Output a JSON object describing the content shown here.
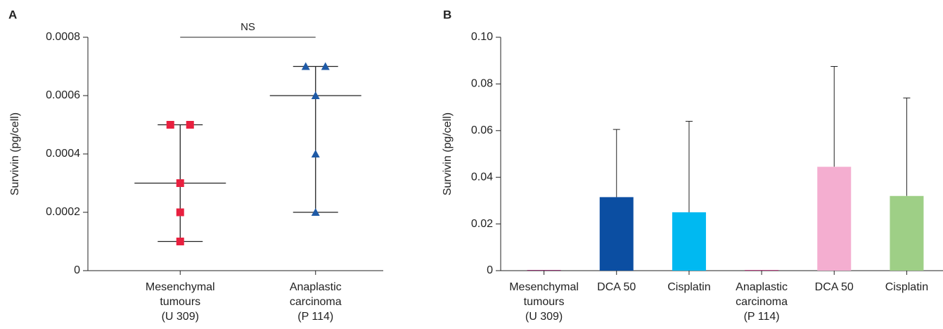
{
  "chart_data": [
    {
      "type": "scatter",
      "panel": "A",
      "ylabel": "Survivin (pg/cell)",
      "categories": [
        [
          "Mesenchymal",
          "tumours",
          "(U 309)"
        ],
        [
          "Anaplastic",
          "carcinoma",
          "(P 114)"
        ]
      ],
      "groups": [
        {
          "color": "#e8203f",
          "marker": "square",
          "values": [
            0.0005,
            0.0005,
            0.0003,
            0.0002,
            0.0001
          ],
          "median": 0.0003,
          "range": [
            0.0001,
            0.0005
          ]
        },
        {
          "color": "#1f5aa6",
          "marker": "triangle",
          "values": [
            0.0007,
            0.0007,
            0.0006,
            0.0004,
            0.0002
          ],
          "median": 0.0006,
          "range": [
            0.0002,
            0.0007
          ]
        }
      ],
      "annotation": "NS",
      "ylim": [
        0,
        0.0008
      ],
      "yticks": [
        0,
        0.0002,
        0.0004,
        0.0006,
        0.0008
      ]
    },
    {
      "type": "bar",
      "panel": "B",
      "ylabel": "Survivin (pg/cell)",
      "categories": [
        [
          "Mesenchymal",
          "tumours",
          "(U 309)"
        ],
        [
          "DCA 50"
        ],
        [
          "Cisplatin"
        ],
        [
          "Anaplastic",
          "carcinoma",
          "(P 114)"
        ],
        [
          "DCA 50"
        ],
        [
          "Cisplatin"
        ]
      ],
      "values": [
        0.0003,
        0.0315,
        0.025,
        0.0003,
        0.0445,
        0.032
      ],
      "errors": [
        null,
        0.029,
        0.039,
        null,
        0.043,
        0.042
      ],
      "colors": [
        "#8e2f6e",
        "#0b4ea2",
        "#00b9f1",
        "#b5417f",
        "#f4aed0",
        "#9ecf86"
      ],
      "ylim": [
        0,
        0.1
      ],
      "yticks": [
        0,
        0.02,
        0.04,
        0.06,
        0.08,
        {
          "value": 0.1,
          "label": "0.10"
        }
      ]
    }
  ]
}
